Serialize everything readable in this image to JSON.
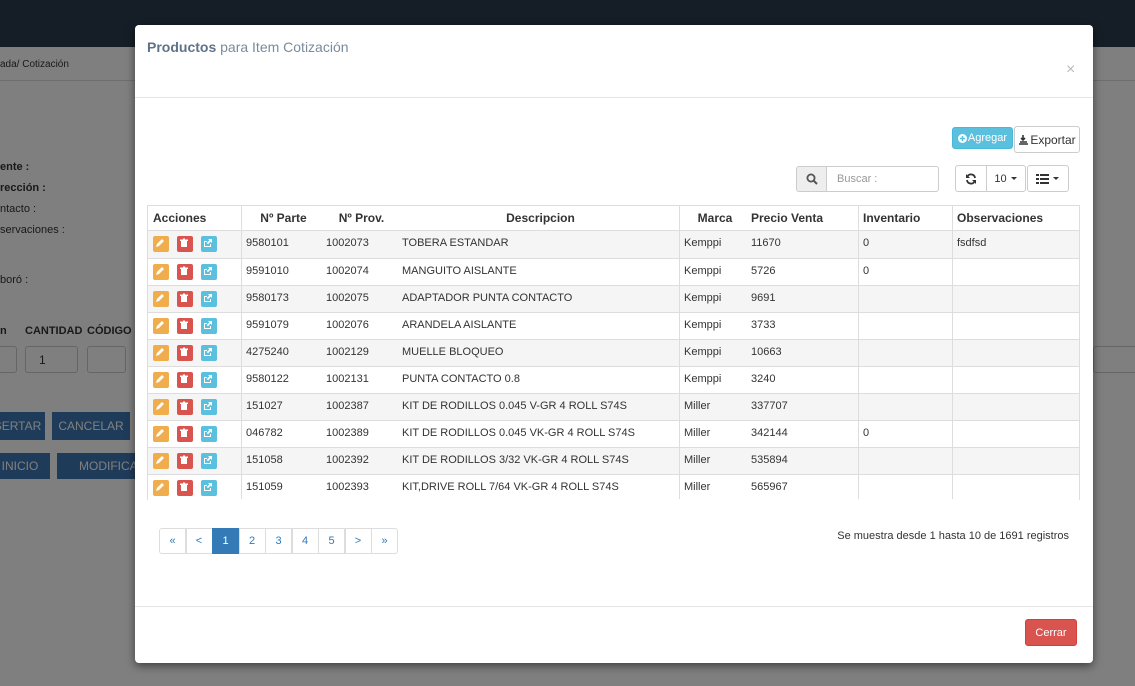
{
  "background": {
    "breadcrumb": "ada/ Cotización",
    "labels": [
      "ente :",
      "rección :",
      "ntacto :",
      "servaciones :",
      "boró :"
    ],
    "columns": [
      "n",
      "CANTIDAD",
      "CÓDIGO"
    ],
    "quantity": "1",
    "buttons": [
      "SERTAR",
      "CANCELAR",
      "INICIO",
      "MODIFICA"
    ]
  },
  "modal": {
    "title_bold": "Productos",
    "title_rest": "para Item Cotización",
    "close": "×",
    "toolbar": {
      "add": "Agregar",
      "export": "Exportar",
      "search_placeholder": "Buscar :",
      "page_size": "10"
    },
    "table": {
      "headers": [
        "Acciones",
        "Nº Parte",
        "Nº Prov.",
        "Descripcion",
        "Marca",
        "Precio Venta",
        "Inventario",
        "Observaciones"
      ],
      "rows": [
        [
          "9580101",
          "1002073",
          "TOBERA ESTANDAR",
          "Kemppi",
          "11670",
          "0",
          "fsdfsd"
        ],
        [
          "9591010",
          "1002074",
          "MANGUITO AISLANTE",
          "Kemppi",
          "5726",
          "0",
          null
        ],
        [
          "9580173",
          "1002075",
          "ADAPTADOR PUNTA CONTACTO",
          "Kemppi",
          "9691",
          null,
          null
        ],
        [
          "9591079",
          "1002076",
          "ARANDELA AISLANTE",
          "Kemppi",
          "3733",
          null,
          null
        ],
        [
          "4275240",
          "1002129",
          "MUELLE BLOQUEO",
          "Kemppi",
          "10663",
          null,
          null
        ],
        [
          "9580122",
          "1002131",
          "PUNTA CONTACTO 0.8",
          "Kemppi",
          "3240",
          null,
          null
        ],
        [
          "151027",
          "1002387",
          "KIT DE RODILLOS 0.045 V-GR 4 ROLL S74S",
          "Miller",
          "337707",
          null,
          null
        ],
        [
          "046782",
          "1002389",
          "KIT DE RODILLOS 0.045 VK-GR 4 ROLL S74S",
          "Miller",
          "342144",
          "0",
          null
        ],
        [
          "151058",
          "1002392",
          "KIT DE RODILLOS 3/32 VK-GR 4 ROLL S74S",
          "Miller",
          "535894",
          null,
          null
        ],
        [
          "151059",
          "1002393",
          "KIT,DRIVE ROLL 7/64 VK-GR 4 ROLL S74S",
          "Miller",
          "565967",
          null,
          null
        ]
      ]
    },
    "pagination": [
      "«",
      "<",
      "1",
      "2",
      "3",
      "4",
      "5",
      ">",
      "»"
    ],
    "info": "Se muestra desde 1 hasta 10 de 1691 registros",
    "close_button": "Cerrar"
  }
}
